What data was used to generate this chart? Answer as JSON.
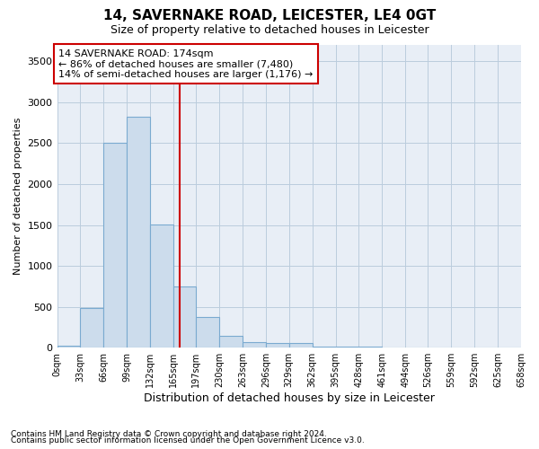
{
  "title": "14, SAVERNAKE ROAD, LEICESTER, LE4 0GT",
  "subtitle": "Size of property relative to detached houses in Leicester",
  "xlabel": "Distribution of detached houses by size in Leicester",
  "ylabel": "Number of detached properties",
  "footnote1": "Contains HM Land Registry data © Crown copyright and database right 2024.",
  "footnote2": "Contains public sector information licensed under the Open Government Licence v3.0.",
  "annotation_line1": "14 SAVERNAKE ROAD: 174sqm",
  "annotation_line2": "← 86% of detached houses are smaller (7,480)",
  "annotation_line3": "14% of semi-detached houses are larger (1,176) →",
  "bar_color": "#ccdcec",
  "bar_edge_color": "#7aaad0",
  "red_line_x": 174,
  "red_color": "#cc0000",
  "bin_edges": [
    0,
    33,
    66,
    99,
    132,
    165,
    197,
    230,
    263,
    296,
    329,
    362,
    395,
    428,
    461,
    494,
    526,
    559,
    592,
    625,
    658
  ],
  "bin_values": [
    28,
    480,
    2500,
    2820,
    1510,
    750,
    380,
    140,
    70,
    55,
    55,
    10,
    10,
    10,
    0,
    0,
    0,
    0,
    0,
    0
  ],
  "ylim": [
    0,
    3700
  ],
  "yticks": [
    0,
    500,
    1000,
    1500,
    2000,
    2500,
    3000,
    3500
  ],
  "xtick_labels": [
    "0sqm",
    "33sqm",
    "66sqm",
    "99sqm",
    "132sqm",
    "165sqm",
    "197sqm",
    "230sqm",
    "263sqm",
    "296sqm",
    "329sqm",
    "362sqm",
    "395sqm",
    "428sqm",
    "461sqm",
    "494sqm",
    "526sqm",
    "559sqm",
    "592sqm",
    "625sqm",
    "658sqm"
  ],
  "background_color": "#ffffff",
  "grid_color": "#bbccdd",
  "plot_bg_color": "#e8eef6",
  "title_fontsize": 11,
  "subtitle_fontsize": 9,
  "ylabel_fontsize": 8,
  "xlabel_fontsize": 9,
  "tick_fontsize": 8,
  "annotation_fontsize": 8,
  "footnote_fontsize": 6.5
}
